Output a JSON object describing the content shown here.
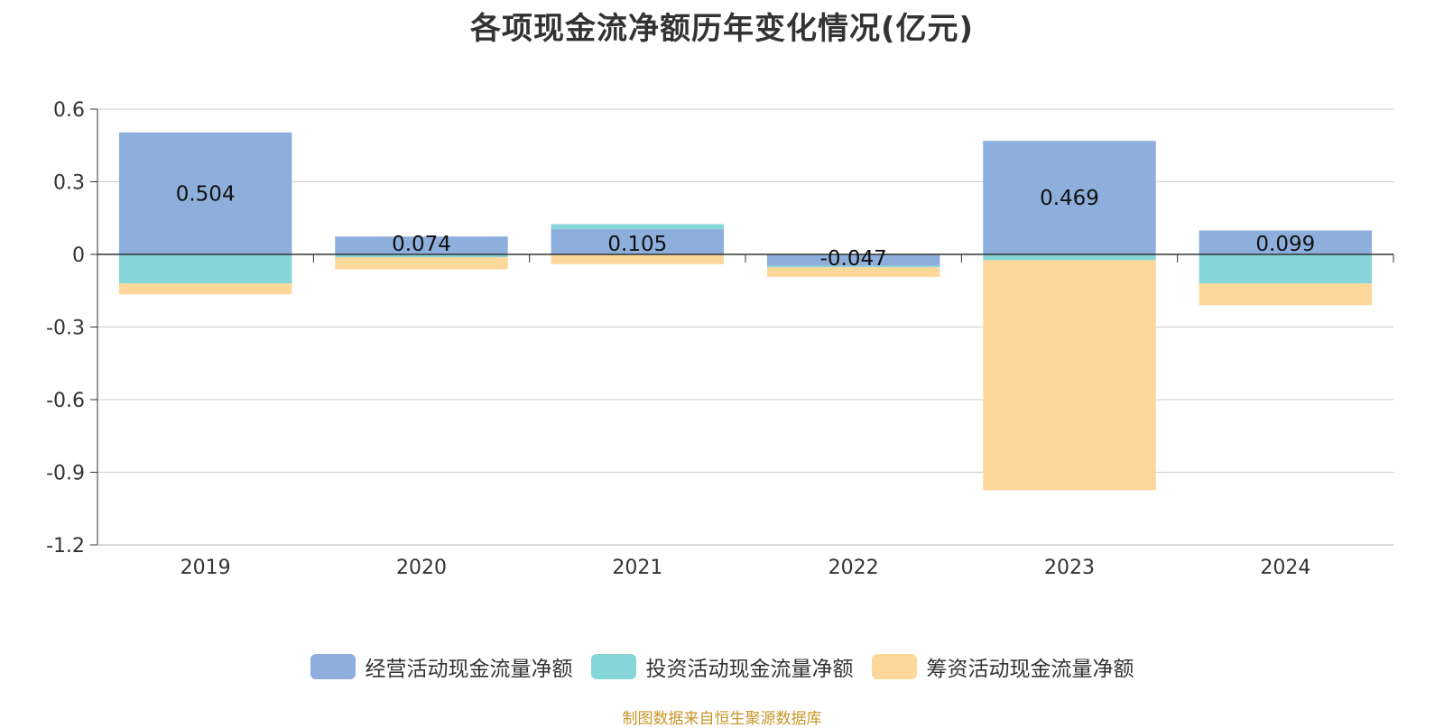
{
  "title": "各项现金流净额历年变化情况(亿元)",
  "source_note": "制图数据来自恒生聚源数据库",
  "colors": {
    "operating": "#8eafdc",
    "investing": "#86d5d8",
    "financing": "#fdd89a",
    "grid": "#cccccc",
    "axis": "#333333"
  },
  "chart_data": {
    "type": "bar",
    "stacked": true,
    "title": "各项现金流净额历年变化情况(亿元)",
    "categories": [
      "2019",
      "2020",
      "2021",
      "2022",
      "2023",
      "2024"
    ],
    "series": [
      {
        "name": "经营活动现金流量净额",
        "color": "#8eafdc",
        "values": [
          0.504,
          0.074,
          0.105,
          -0.047,
          0.469,
          0.099
        ],
        "show_labels": true
      },
      {
        "name": "投资活动现金流量净额",
        "color": "#86d5d8",
        "values": [
          -0.12,
          -0.012,
          0.02,
          -0.006,
          -0.024,
          -0.12
        ],
        "show_labels": false
      },
      {
        "name": "筹资活动现金流量净额",
        "color": "#fdd89a",
        "values": [
          -0.045,
          -0.05,
          -0.04,
          -0.04,
          -0.95,
          -0.09
        ],
        "show_labels": false
      }
    ],
    "value_labels": [
      "0.504",
      "0.074",
      "0.105",
      "-0.047",
      "0.469",
      "0.099"
    ],
    "y_ticks": [
      "0.6",
      "0.3",
      "0",
      "-0.3",
      "-0.6",
      "-0.9",
      "-1.2"
    ],
    "ylim": [
      -1.2,
      0.6
    ],
    "grid": true,
    "legend_position": "bottom-center",
    "xlabel": "",
    "ylabel": ""
  }
}
